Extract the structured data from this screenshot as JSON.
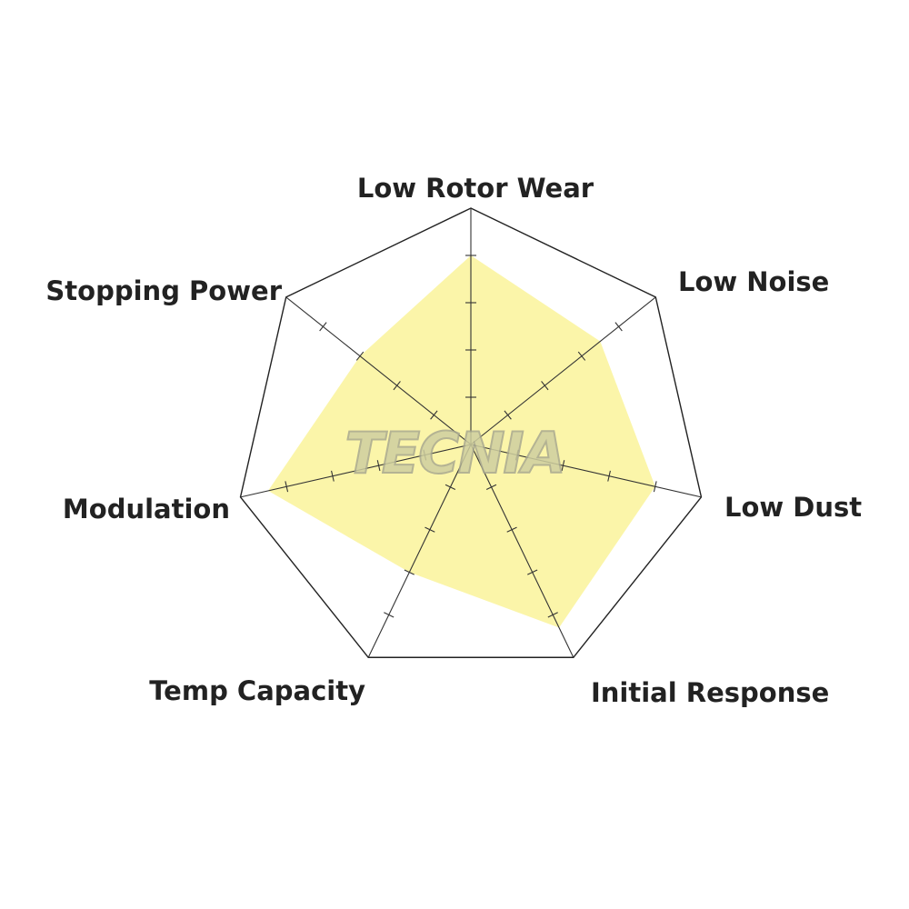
{
  "chart_data": {
    "type": "radar",
    "title": "",
    "axes": [
      "Low Rotor Wear",
      "Low Noise",
      "Low Dust",
      "Initial Response",
      "Temp Capacity",
      "Modulation",
      "Stopping Power"
    ],
    "values": [
      4,
      3.5,
      4,
      4.3,
      3,
      4.4,
      3
    ],
    "range": [
      0,
      5
    ],
    "tick_count": 5,
    "fill_color": "#fbf5a9",
    "line_color": "#222222",
    "grid": true
  },
  "watermark": "TECNIA"
}
